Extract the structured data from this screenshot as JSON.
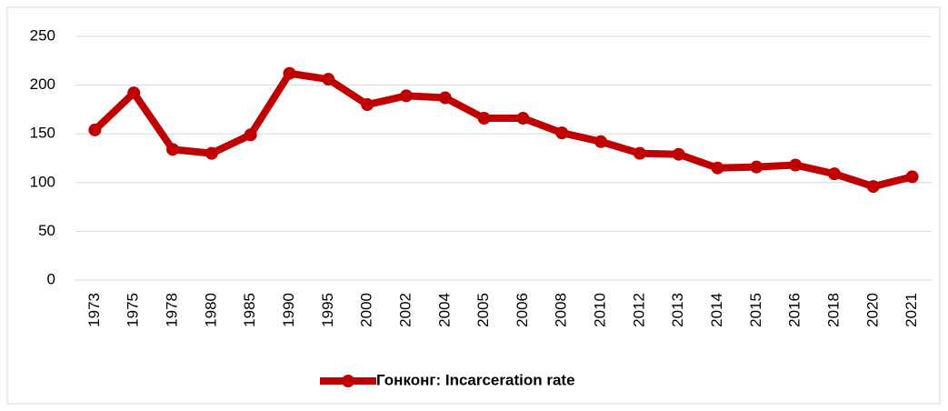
{
  "chart_data": {
    "type": "line",
    "categories": [
      "1973",
      "1975",
      "1978",
      "1980",
      "1985",
      "1990",
      "1995",
      "2000",
      "2002",
      "2004",
      "2005",
      "2006",
      "2008",
      "2010",
      "2012",
      "2013",
      "2014",
      "2015",
      "2016",
      "2018",
      "2020",
      "2021"
    ],
    "series": [
      {
        "name": "Гонконг: Incarceration rate",
        "color": "#c00000",
        "values": [
          154,
          192,
          134,
          130,
          149,
          212,
          206,
          180,
          189,
          187,
          166,
          166,
          151,
          142,
          130,
          129,
          115,
          116,
          118,
          109,
          96,
          106
        ]
      }
    ],
    "ylim": [
      0,
      250
    ],
    "yticks": [
      0,
      50,
      100,
      150,
      200,
      250
    ],
    "grid": true,
    "legend": "bottom"
  }
}
